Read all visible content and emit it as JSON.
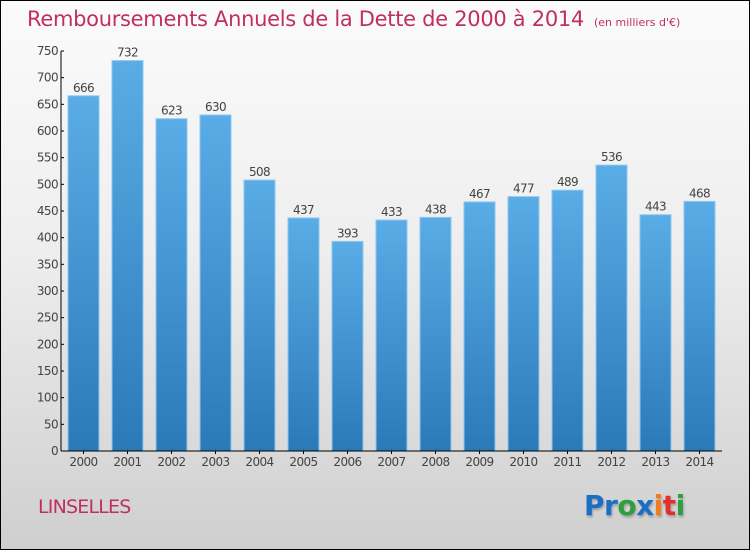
{
  "title": {
    "main": "Remboursements Annuels de la Dette de 2000 à 2014",
    "unit": "(en milliers d'€)"
  },
  "city": "LINSELLES",
  "logo": {
    "letters": [
      {
        "char": "P",
        "color": "#1a6fc4"
      },
      {
        "char": "r",
        "color": "#1a6fc4"
      },
      {
        "char": "o",
        "color": "#2e9e3e"
      },
      {
        "char": "x",
        "color": "#1a6fc4"
      },
      {
        "char": "i",
        "color": "#f07d1a"
      },
      {
        "char": "t",
        "color": "#e03030"
      },
      {
        "char": "i",
        "color": "#2e9e3e"
      }
    ]
  },
  "colors": {
    "title": "#c0305f",
    "bar_top": "#5aace6",
    "bar_bottom": "#2a7ab8",
    "axis": "#000000"
  },
  "chart_data": {
    "type": "bar",
    "title": "Remboursements Annuels de la Dette de 2000 à 2014 (en milliers d'€)",
    "xlabel": "",
    "ylabel": "",
    "categories": [
      "2000",
      "2001",
      "2002",
      "2003",
      "2004",
      "2005",
      "2006",
      "2007",
      "2008",
      "2009",
      "2010",
      "2011",
      "2012",
      "2013",
      "2014"
    ],
    "values": [
      666,
      732,
      623,
      630,
      508,
      437,
      393,
      433,
      438,
      467,
      477,
      489,
      536,
      443,
      468
    ],
    "ylim": [
      0,
      750
    ],
    "yticks": [
      0,
      50,
      100,
      150,
      200,
      250,
      300,
      350,
      400,
      450,
      500,
      550,
      600,
      650,
      700,
      750
    ],
    "grid": false,
    "data_labels": true,
    "legend": "none"
  }
}
